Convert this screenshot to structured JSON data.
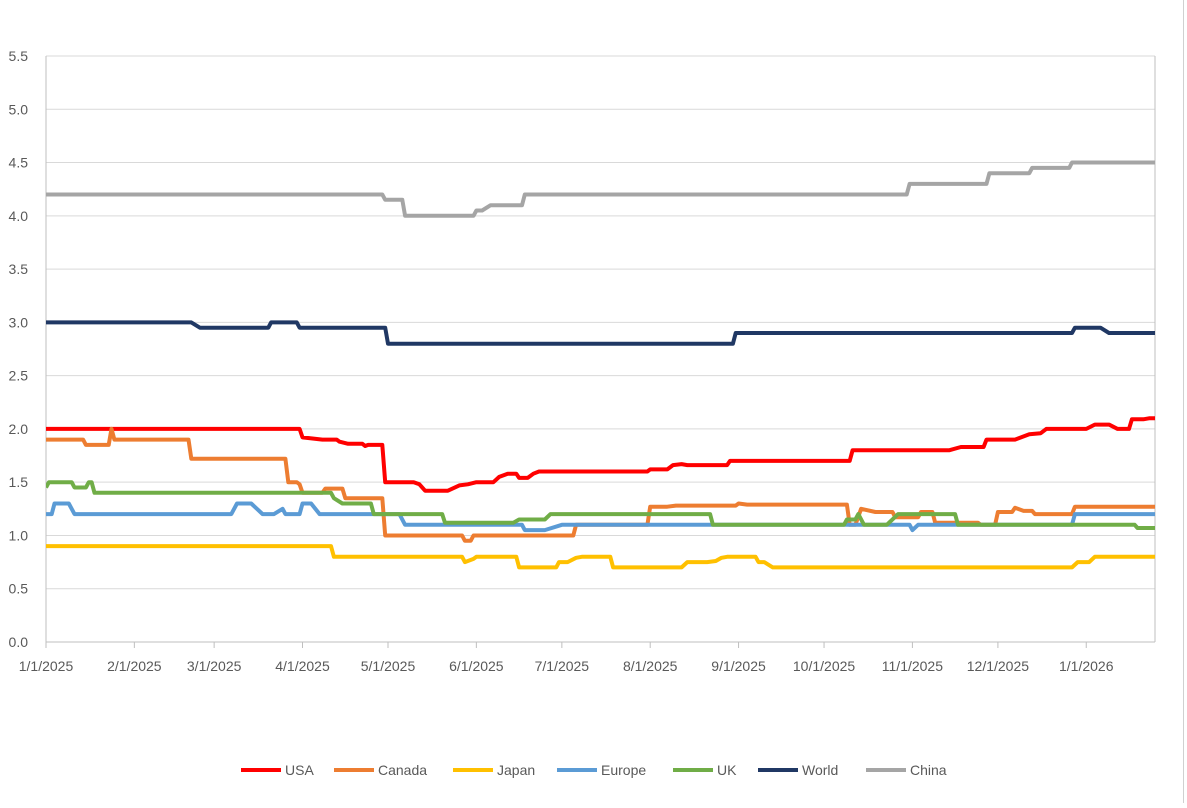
{
  "chart_data": {
    "type": "line",
    "title": "",
    "xlabel": "",
    "ylabel": "",
    "ylim": [
      0,
      5.5
    ],
    "y_ticks": [
      "0.0",
      "0.5",
      "1.0",
      "1.5",
      "2.0",
      "2.5",
      "3.0",
      "3.5",
      "4.0",
      "4.5",
      "5.0",
      "5.5"
    ],
    "x_range": [
      "2025-01-01",
      "2026-01-22"
    ],
    "x_ticks": [
      {
        "date": "2025-01-01",
        "label": "1/1/2025"
      },
      {
        "date": "2025-02-01",
        "label": "2/1/2025"
      },
      {
        "date": "2025-03-01",
        "label": "3/1/2025"
      },
      {
        "date": "2025-04-01",
        "label": "4/1/2025"
      },
      {
        "date": "2025-05-01",
        "label": "5/1/2025"
      },
      {
        "date": "2025-06-01",
        "label": "6/1/2025"
      },
      {
        "date": "2025-07-01",
        "label": "7/1/2025"
      },
      {
        "date": "2025-08-01",
        "label": "8/1/2025"
      },
      {
        "date": "2025-09-01",
        "label": "9/1/2025"
      },
      {
        "date": "2025-10-01",
        "label": "10/1/2025"
      },
      {
        "date": "2025-11-01",
        "label": "11/1/2025"
      },
      {
        "date": "2025-12-01",
        "label": "12/1/2025"
      },
      {
        "date": "2026-01-01",
        "label": "1/1/2026"
      }
    ],
    "grid": "horizontal",
    "legend_position": "bottom",
    "series": [
      {
        "name": "USA",
        "color": "#ff0000",
        "points": [
          [
            "2025-01-01",
            2.0
          ],
          [
            "2025-03-31",
            2.0
          ],
          [
            "2025-04-01",
            1.92
          ],
          [
            "2025-04-08",
            1.9
          ],
          [
            "2025-04-13",
            1.9
          ],
          [
            "2025-04-14",
            1.88
          ],
          [
            "2025-04-17",
            1.86
          ],
          [
            "2025-04-22",
            1.86
          ],
          [
            "2025-04-23",
            1.84
          ],
          [
            "2025-04-24",
            1.85
          ],
          [
            "2025-04-29",
            1.85
          ],
          [
            "2025-04-30",
            1.5
          ],
          [
            "2025-05-10",
            1.5
          ],
          [
            "2025-05-12",
            1.48
          ],
          [
            "2025-05-14",
            1.42
          ],
          [
            "2025-05-20",
            1.42
          ],
          [
            "2025-05-22",
            1.42
          ],
          [
            "2025-05-26",
            1.47
          ],
          [
            "2025-05-29",
            1.48
          ],
          [
            "2025-06-01",
            1.5
          ],
          [
            "2025-06-07",
            1.5
          ],
          [
            "2025-06-09",
            1.55
          ],
          [
            "2025-06-12",
            1.58
          ],
          [
            "2025-06-15",
            1.58
          ],
          [
            "2025-06-16",
            1.54
          ],
          [
            "2025-06-19",
            1.54
          ],
          [
            "2025-06-21",
            1.58
          ],
          [
            "2025-06-23",
            1.6
          ],
          [
            "2025-07-31",
            1.6
          ],
          [
            "2025-08-01",
            1.62
          ],
          [
            "2025-08-07",
            1.62
          ],
          [
            "2025-08-09",
            1.66
          ],
          [
            "2025-08-12",
            1.67
          ],
          [
            "2025-08-14",
            1.66
          ],
          [
            "2025-08-28",
            1.66
          ],
          [
            "2025-08-29",
            1.7
          ],
          [
            "2025-10-10",
            1.7
          ],
          [
            "2025-10-11",
            1.8
          ],
          [
            "2025-11-14",
            1.8
          ],
          [
            "2025-11-18",
            1.83
          ],
          [
            "2025-11-26",
            1.83
          ],
          [
            "2025-11-27",
            1.9
          ],
          [
            "2025-12-07",
            1.9
          ],
          [
            "2025-12-12",
            1.95
          ],
          [
            "2025-12-16",
            1.96
          ],
          [
            "2025-12-18",
            2.0
          ],
          [
            "2026-01-01",
            2.0
          ],
          [
            "2026-01-04",
            2.04
          ],
          [
            "2026-01-09",
            2.04
          ],
          [
            "2026-01-12",
            2.0
          ],
          [
            "2026-01-16",
            2.0
          ],
          [
            "2026-01-17",
            2.09
          ],
          [
            "2026-01-21",
            2.09
          ],
          [
            "2026-01-23",
            2.1
          ],
          [
            "2026-02-03",
            2.1
          ]
        ]
      },
      {
        "name": "Canada",
        "color": "#ed7d31",
        "points": [
          [
            "2025-01-01",
            1.9
          ],
          [
            "2025-01-14",
            1.9
          ],
          [
            "2025-01-15",
            1.85
          ],
          [
            "2025-01-23",
            1.85
          ],
          [
            "2025-01-24",
            2.0
          ],
          [
            "2025-01-25",
            1.9
          ],
          [
            "2025-02-20",
            1.9
          ],
          [
            "2025-02-21",
            1.72
          ],
          [
            "2025-03-26",
            1.72
          ],
          [
            "2025-03-27",
            1.5
          ],
          [
            "2025-03-30",
            1.5
          ],
          [
            "2025-03-31",
            1.48
          ],
          [
            "2025-04-01",
            1.4
          ],
          [
            "2025-04-08",
            1.4
          ],
          [
            "2025-04-09",
            1.44
          ],
          [
            "2025-04-15",
            1.44
          ],
          [
            "2025-04-16",
            1.35
          ],
          [
            "2025-04-29",
            1.35
          ],
          [
            "2025-04-30",
            1.0
          ],
          [
            "2025-05-27",
            1.0
          ],
          [
            "2025-05-28",
            0.95
          ],
          [
            "2025-05-30",
            0.95
          ],
          [
            "2025-05-31",
            1.0
          ],
          [
            "2025-06-22",
            1.0
          ],
          [
            "2025-07-05",
            1.0
          ],
          [
            "2025-07-06",
            1.1
          ],
          [
            "2025-07-31",
            1.1
          ],
          [
            "2025-08-01",
            1.27
          ],
          [
            "2025-08-07",
            1.27
          ],
          [
            "2025-08-10",
            1.28
          ],
          [
            "2025-08-31",
            1.28
          ],
          [
            "2025-09-01",
            1.3
          ],
          [
            "2025-09-04",
            1.29
          ],
          [
            "2025-10-09",
            1.29
          ],
          [
            "2025-10-10",
            1.1
          ],
          [
            "2025-10-12",
            1.1
          ],
          [
            "2025-10-14",
            1.25
          ],
          [
            "2025-10-19",
            1.22
          ],
          [
            "2025-10-25",
            1.22
          ],
          [
            "2025-10-26",
            1.17
          ],
          [
            "2025-11-03",
            1.17
          ],
          [
            "2025-11-04",
            1.22
          ],
          [
            "2025-11-08",
            1.22
          ],
          [
            "2025-11-09",
            1.12
          ],
          [
            "2025-11-24",
            1.12
          ],
          [
            "2025-11-25",
            1.1
          ],
          [
            "2025-11-30",
            1.1
          ],
          [
            "2025-12-01",
            1.22
          ],
          [
            "2025-12-06",
            1.22
          ],
          [
            "2025-12-07",
            1.26
          ],
          [
            "2025-12-10",
            1.23
          ],
          [
            "2025-12-13",
            1.23
          ],
          [
            "2025-12-14",
            1.2
          ],
          [
            "2025-12-27",
            1.2
          ],
          [
            "2025-12-28",
            1.27
          ],
          [
            "2026-01-28",
            1.27
          ],
          [
            "2026-01-29",
            1.28
          ],
          [
            "2026-02-03",
            1.28
          ]
        ]
      },
      {
        "name": "Japan",
        "color": "#ffc000",
        "points": [
          [
            "2025-01-01",
            0.9
          ],
          [
            "2025-04-11",
            0.9
          ],
          [
            "2025-04-12",
            0.8
          ],
          [
            "2025-05-27",
            0.8
          ],
          [
            "2025-05-28",
            0.75
          ],
          [
            "2025-05-31",
            0.78
          ],
          [
            "2025-06-01",
            0.8
          ],
          [
            "2025-06-15",
            0.8
          ],
          [
            "2025-06-16",
            0.7
          ],
          [
            "2025-06-29",
            0.7
          ],
          [
            "2025-06-30",
            0.75
          ],
          [
            "2025-07-03",
            0.75
          ],
          [
            "2025-07-06",
            0.79
          ],
          [
            "2025-07-08",
            0.8
          ],
          [
            "2025-07-18",
            0.8
          ],
          [
            "2025-07-19",
            0.7
          ],
          [
            "2025-08-12",
            0.7
          ],
          [
            "2025-08-14",
            0.75
          ],
          [
            "2025-08-21",
            0.75
          ],
          [
            "2025-08-24",
            0.76
          ],
          [
            "2025-08-26",
            0.79
          ],
          [
            "2025-08-28",
            0.8
          ],
          [
            "2025-09-07",
            0.8
          ],
          [
            "2025-09-08",
            0.75
          ],
          [
            "2025-09-10",
            0.75
          ],
          [
            "2025-09-13",
            0.7
          ],
          [
            "2025-12-27",
            0.7
          ],
          [
            "2025-12-29",
            0.75
          ],
          [
            "2026-01-02",
            0.75
          ],
          [
            "2026-01-04",
            0.8
          ],
          [
            "2026-02-03",
            0.8
          ]
        ]
      },
      {
        "name": "Europe",
        "color": "#5b9bd5",
        "points": [
          [
            "2025-01-01",
            1.2
          ],
          [
            "2025-01-03",
            1.2
          ],
          [
            "2025-01-04",
            1.3
          ],
          [
            "2025-01-09",
            1.3
          ],
          [
            "2025-01-11",
            1.2
          ],
          [
            "2025-03-07",
            1.2
          ],
          [
            "2025-03-09",
            1.3
          ],
          [
            "2025-03-14",
            1.3
          ],
          [
            "2025-03-16",
            1.25
          ],
          [
            "2025-03-18",
            1.2
          ],
          [
            "2025-03-22",
            1.2
          ],
          [
            "2025-03-25",
            1.25
          ],
          [
            "2025-03-26",
            1.2
          ],
          [
            "2025-03-28",
            1.2
          ],
          [
            "2025-03-31",
            1.2
          ],
          [
            "2025-04-01",
            1.3
          ],
          [
            "2025-04-04",
            1.3
          ],
          [
            "2025-04-07",
            1.2
          ],
          [
            "2025-05-05",
            1.2
          ],
          [
            "2025-05-07",
            1.1
          ],
          [
            "2025-06-17",
            1.1
          ],
          [
            "2025-06-18",
            1.05
          ],
          [
            "2025-06-25",
            1.05
          ],
          [
            "2025-07-01",
            1.1
          ],
          [
            "2025-08-01",
            1.1
          ],
          [
            "2025-10-31",
            1.1
          ],
          [
            "2025-11-01",
            1.05
          ],
          [
            "2025-11-03",
            1.1
          ],
          [
            "2025-12-27",
            1.1
          ],
          [
            "2025-12-28",
            1.2
          ],
          [
            "2026-02-03",
            1.2
          ]
        ]
      },
      {
        "name": "UK",
        "color": "#70ad47",
        "points": [
          [
            "2025-01-01",
            1.45
          ],
          [
            "2025-01-02",
            1.5
          ],
          [
            "2025-01-10",
            1.5
          ],
          [
            "2025-01-11",
            1.45
          ],
          [
            "2025-01-15",
            1.45
          ],
          [
            "2025-01-16",
            1.5
          ],
          [
            "2025-01-17",
            1.5
          ],
          [
            "2025-01-18",
            1.4
          ],
          [
            "2025-04-11",
            1.4
          ],
          [
            "2025-04-12",
            1.35
          ],
          [
            "2025-04-15",
            1.3
          ],
          [
            "2025-04-25",
            1.3
          ],
          [
            "2025-04-26",
            1.2
          ],
          [
            "2025-05-20",
            1.2
          ],
          [
            "2025-05-21",
            1.12
          ],
          [
            "2025-06-14",
            1.12
          ],
          [
            "2025-06-16",
            1.15
          ],
          [
            "2025-06-25",
            1.15
          ],
          [
            "2025-06-27",
            1.2
          ],
          [
            "2025-08-22",
            1.2
          ],
          [
            "2025-08-23",
            1.1
          ],
          [
            "2025-10-08",
            1.1
          ],
          [
            "2025-10-09",
            1.15
          ],
          [
            "2025-10-12",
            1.15
          ],
          [
            "2025-10-13",
            1.2
          ],
          [
            "2025-10-15",
            1.1
          ],
          [
            "2025-10-23",
            1.1
          ],
          [
            "2025-10-27",
            1.2
          ],
          [
            "2025-11-16",
            1.2
          ],
          [
            "2025-11-17",
            1.1
          ],
          [
            "2026-01-18",
            1.1
          ],
          [
            "2026-01-19",
            1.07
          ],
          [
            "2026-02-03",
            1.07
          ]
        ]
      },
      {
        "name": "World",
        "color": "#203864",
        "points": [
          [
            "2025-01-01",
            3.0
          ],
          [
            "2025-02-21",
            3.0
          ],
          [
            "2025-02-24",
            2.95
          ],
          [
            "2025-03-20",
            2.95
          ],
          [
            "2025-03-21",
            3.0
          ],
          [
            "2025-03-30",
            3.0
          ],
          [
            "2025-03-31",
            2.95
          ],
          [
            "2025-04-30",
            2.95
          ],
          [
            "2025-05-01",
            2.8
          ],
          [
            "2025-08-30",
            2.8
          ],
          [
            "2025-08-31",
            2.9
          ],
          [
            "2025-12-27",
            2.9
          ],
          [
            "2025-12-28",
            2.95
          ],
          [
            "2026-01-06",
            2.95
          ],
          [
            "2026-01-09",
            2.9
          ],
          [
            "2026-02-03",
            2.9
          ]
        ]
      },
      {
        "name": "China",
        "color": "#a5a5a5",
        "points": [
          [
            "2025-01-01",
            4.2
          ],
          [
            "2025-04-29",
            4.2
          ],
          [
            "2025-04-30",
            4.15
          ],
          [
            "2025-05-06",
            4.15
          ],
          [
            "2025-05-07",
            4.0
          ],
          [
            "2025-05-31",
            4.0
          ],
          [
            "2025-06-01",
            4.05
          ],
          [
            "2025-06-03",
            4.05
          ],
          [
            "2025-06-06",
            4.1
          ],
          [
            "2025-06-17",
            4.1
          ],
          [
            "2025-06-18",
            4.2
          ],
          [
            "2025-10-30",
            4.2
          ],
          [
            "2025-10-31",
            4.3
          ],
          [
            "2025-11-27",
            4.3
          ],
          [
            "2025-11-28",
            4.4
          ],
          [
            "2025-12-12",
            4.4
          ],
          [
            "2025-12-13",
            4.45
          ],
          [
            "2025-12-26",
            4.45
          ],
          [
            "2025-12-27",
            4.5
          ],
          [
            "2026-02-03",
            4.5
          ]
        ]
      }
    ]
  }
}
